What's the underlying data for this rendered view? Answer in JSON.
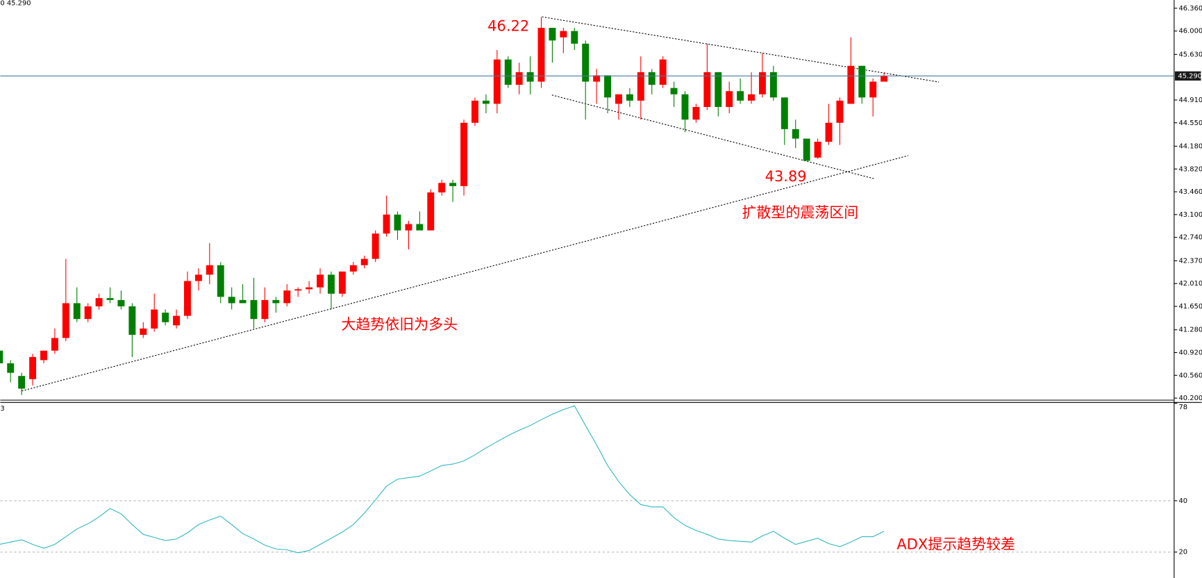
{
  "chart_data": [
    {
      "type": "candlestick",
      "header": "0 45.290",
      "open": [
        40.95,
        40.75,
        40.55,
        40.5,
        40.8,
        40.95,
        41.15,
        41.7,
        41.45,
        41.65,
        41.78,
        41.75,
        41.65,
        41.2,
        41.3,
        41.55,
        41.35,
        41.5,
        42.05,
        42.15,
        42.3,
        41.8,
        41.75,
        41.75,
        41.45,
        41.75,
        41.7,
        41.9,
        41.92,
        41.95,
        42.15,
        41.85,
        42.2,
        42.3,
        42.4,
        42.8,
        43.1,
        42.85,
        42.95,
        42.85,
        43.45,
        43.6,
        43.55,
        44.55,
        44.9,
        44.85,
        45.55,
        45.15,
        45.35,
        45.2,
        46.05,
        45.9,
        46.0,
        45.8,
        45.2,
        45.3,
        44.85,
        45.0,
        44.9,
        45.35,
        45.15,
        45.1,
        45.0,
        44.6,
        44.8,
        45.35,
        44.8,
        45.05,
        44.9,
        45.0,
        45.35,
        44.95,
        44.45,
        44.3,
        44.0,
        44.25,
        44.55,
        44.85,
        45.45,
        44.95,
        45.2
      ],
      "high": [
        41.1,
        40.8,
        40.6,
        40.9,
        40.95,
        41.3,
        42.4,
        41.95,
        41.7,
        41.85,
        41.95,
        41.9,
        41.7,
        41.4,
        41.85,
        41.6,
        41.6,
        42.2,
        42.25,
        42.65,
        42.35,
        41.95,
        42.0,
        42.1,
        41.95,
        41.8,
        42.0,
        41.95,
        42.05,
        42.25,
        42.2,
        42.2,
        42.35,
        42.45,
        42.85,
        43.4,
        43.15,
        43.0,
        43.15,
        43.5,
        43.65,
        43.65,
        44.6,
        44.95,
        45.0,
        45.7,
        45.6,
        45.5,
        45.6,
        46.22,
        46.05,
        46.05,
        46.05,
        45.85,
        45.4,
        45.3,
        45.0,
        45.1,
        45.6,
        45.4,
        45.6,
        45.2,
        45.05,
        44.85,
        45.8,
        45.35,
        45.2,
        45.25,
        45.35,
        45.65,
        45.45,
        44.95,
        44.6,
        44.3,
        44.3,
        44.85,
        44.95,
        45.9,
        45.45,
        45.25,
        45.35
      ],
      "low": [
        40.6,
        40.45,
        40.25,
        40.4,
        40.75,
        40.9,
        41.1,
        41.4,
        41.4,
        41.6,
        41.7,
        41.6,
        40.85,
        41.15,
        41.25,
        41.35,
        41.3,
        41.45,
        41.9,
        42.0,
        41.7,
        41.6,
        41.7,
        41.3,
        41.4,
        41.55,
        41.65,
        41.8,
        41.85,
        41.85,
        41.6,
        41.8,
        42.15,
        42.25,
        42.35,
        42.75,
        42.7,
        42.55,
        42.85,
        42.85,
        43.4,
        43.3,
        43.4,
        44.5,
        44.7,
        44.7,
        45.1,
        45.0,
        45.0,
        45.1,
        45.5,
        45.65,
        45.7,
        44.6,
        44.85,
        44.7,
        44.6,
        44.8,
        44.6,
        45.0,
        45.1,
        44.8,
        44.4,
        44.55,
        44.75,
        44.65,
        44.7,
        44.85,
        44.85,
        44.95,
        44.9,
        44.2,
        44.15,
        43.95,
        43.98,
        44.2,
        44.2,
        44.85,
        44.85,
        44.65,
        45.2
      ],
      "close": [
        40.75,
        40.6,
        40.35,
        40.85,
        40.95,
        41.15,
        41.7,
        41.45,
        41.65,
        41.78,
        41.75,
        41.65,
        41.2,
        41.3,
        41.6,
        41.4,
        41.5,
        42.05,
        42.15,
        42.3,
        41.8,
        41.7,
        41.7,
        41.45,
        41.75,
        41.7,
        41.9,
        41.92,
        41.95,
        42.15,
        41.85,
        42.2,
        42.3,
        42.4,
        42.8,
        43.1,
        42.85,
        42.95,
        42.85,
        43.45,
        43.6,
        43.55,
        44.55,
        44.9,
        44.85,
        45.55,
        45.15,
        45.35,
        45.2,
        46.05,
        45.85,
        46.0,
        45.8,
        45.2,
        45.3,
        44.95,
        45.0,
        44.9,
        45.35,
        45.15,
        45.55,
        45.0,
        44.6,
        44.8,
        45.35,
        44.8,
        45.05,
        44.9,
        45.0,
        45.35,
        44.95,
        44.45,
        44.3,
        43.95,
        44.25,
        44.55,
        44.9,
        45.45,
        44.95,
        45.2,
        45.29
      ],
      "up_color": "#ff0000",
      "down_color": "#008000",
      "ylim": [
        40.18,
        46.49
      ],
      "yticks": [
        {
          "value": 40.2,
          "label": "40.200"
        },
        {
          "value": 40.56,
          "label": "40.560"
        },
        {
          "value": 40.92,
          "label": "40.920"
        },
        {
          "value": 41.28,
          "label": "41.280"
        },
        {
          "value": 41.65,
          "label": "41.650"
        },
        {
          "value": 42.01,
          "label": "42.010"
        },
        {
          "value": 42.37,
          "label": "42.370"
        },
        {
          "value": 42.74,
          "label": "42.740"
        },
        {
          "value": 43.1,
          "label": "43.100"
        },
        {
          "value": 43.46,
          "label": "43.460"
        },
        {
          "value": 43.82,
          "label": "43.820"
        },
        {
          "value": 44.18,
          "label": "44.180"
        },
        {
          "value": 44.55,
          "label": "44.550"
        },
        {
          "value": 44.91,
          "label": "44.910"
        },
        {
          "value": 45.63,
          "label": "45.630"
        },
        {
          "value": 46.0,
          "label": "46.000"
        },
        {
          "value": 46.36,
          "label": "46.360"
        }
      ],
      "last_price": {
        "value": 45.29,
        "label": "45.290"
      },
      "annotations": [
        "46.22",
        "43.89",
        "扩散型的震荡区间",
        "大趋势依旧为多头"
      ]
    },
    {
      "type": "line",
      "header": "3",
      "series": [
        {
          "name": "ADX",
          "color": "#2fb8c0",
          "values": [
            23.0,
            23.9,
            24.8,
            23.0,
            21.5,
            23.0,
            26.0,
            29.0,
            31.0,
            33.7,
            37.0,
            34.9,
            30.7,
            26.9,
            25.7,
            24.5,
            25.1,
            27.5,
            30.7,
            32.5,
            34.0,
            30.7,
            27.2,
            25.1,
            22.7,
            21.2,
            20.9,
            19.7,
            20.6,
            23.0,
            25.4,
            27.8,
            30.7,
            35.2,
            40.3,
            45.7,
            48.4,
            49.0,
            49.6,
            51.6,
            53.7,
            54.3,
            55.5,
            57.9,
            60.6,
            63.0,
            65.4,
            67.5,
            69.3,
            71.6,
            73.7,
            75.5,
            77.0,
            69.3,
            61.8,
            53.7,
            47.5,
            42.4,
            38.5,
            37.6,
            37.6,
            33.4,
            30.4,
            28.4,
            26.9,
            25.1,
            24.5,
            24.2,
            23.9,
            26.3,
            28.1,
            25.4,
            23.0,
            24.2,
            25.4,
            23.3,
            22.1,
            23.9,
            26.0,
            26.0,
            28.1
          ]
        }
      ],
      "ylim": [
        9.9,
        78
      ],
      "yticks": [
        20,
        40,
        78
      ],
      "grid": true,
      "annotations": [
        "ADX提示趋势较差"
      ]
    }
  ]
}
